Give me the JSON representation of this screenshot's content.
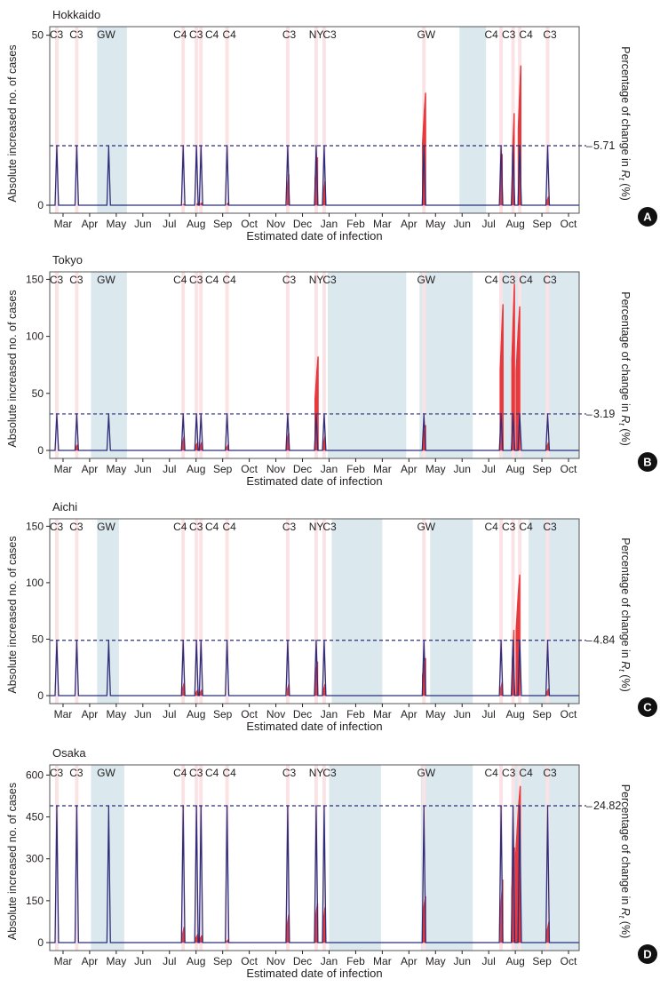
{
  "figure": {
    "xlabel": "Estimated date of infection",
    "ylabel": "Absolute increased no. of cases",
    "y2label_prefix": "Percentage of change in ",
    "y2label_symbol": "R",
    "y2label_subscript": "t",
    "y2label_suffix": " (%)",
    "month_ticks": [
      "Mar",
      "Apr",
      "May",
      "Jun",
      "Jul",
      "Aug",
      "Sep",
      "Oct",
      "Nov",
      "Dec",
      "Jan",
      "Feb",
      "Mar",
      "Apr",
      "May",
      "Jun",
      "Jul",
      "Aug",
      "Sep",
      "Oct"
    ],
    "colors": {
      "bar": "#e8383d",
      "step": "#2b2e7a",
      "shade_blue": "#dbe8ee",
      "shade_pink": "#fbe2e4",
      "axis": "#231f20"
    }
  },
  "chart_data": [
    {
      "type": "bar",
      "panel_label": "A",
      "title": "Hokkaido",
      "xlabel": "Estimated date of infection",
      "ylabel": "Absolute increased no. of cases",
      "ylim": [
        0,
        52
      ],
      "yticks": [
        0,
        50
      ],
      "xlim_month": [
        0,
        19.9
      ],
      "y2_value": 5.71,
      "y2_label": "5.71",
      "step_level": 17.5,
      "event_labels": [
        {
          "text": "C3",
          "x": 0.25
        },
        {
          "text": "C3",
          "x": 1.0
        },
        {
          "text": "GW",
          "x": 2.12
        },
        {
          "text": "C4",
          "x": 4.9
        },
        {
          "text": "C3",
          "x": 5.5
        },
        {
          "text": "C4",
          "x": 6.1
        },
        {
          "text": "C4",
          "x": 6.75
        },
        {
          "text": "C3",
          "x": 9.0
        },
        {
          "text": "NY",
          "x": 10.02
        },
        {
          "text": "C3",
          "x": 10.52
        },
        {
          "text": "GW",
          "x": 14.15
        },
        {
          "text": "C4",
          "x": 16.6
        },
        {
          "text": "C3",
          "x": 17.25
        },
        {
          "text": "C4",
          "x": 17.9
        },
        {
          "text": "C3",
          "x": 18.8
        }
      ],
      "blue_periods": [
        [
          1.78,
          2.9
        ],
        [
          15.4,
          16.4
        ]
      ],
      "pink_periods": [
        [
          0.2,
          0.33
        ],
        [
          0.95,
          1.08
        ],
        [
          4.95,
          5.08
        ],
        [
          5.45,
          5.58
        ],
        [
          5.62,
          5.75
        ],
        [
          6.6,
          6.73
        ],
        [
          8.88,
          9.01
        ],
        [
          9.95,
          10.08
        ],
        [
          10.25,
          10.38
        ],
        [
          14.0,
          14.13
        ],
        [
          16.9,
          17.03
        ],
        [
          17.35,
          17.48
        ],
        [
          17.6,
          17.73
        ],
        [
          18.65,
          18.78
        ]
      ],
      "step_periods": [
        [
          0.2,
          0.33
        ],
        [
          0.95,
          1.08
        ],
        [
          2.15,
          2.28
        ],
        [
          4.95,
          5.08
        ],
        [
          5.45,
          5.58
        ],
        [
          5.62,
          5.75
        ],
        [
          6.6,
          6.73
        ],
        [
          8.88,
          9.01
        ],
        [
          9.95,
          10.08
        ],
        [
          10.25,
          10.38
        ],
        [
          14.0,
          14.13
        ],
        [
          16.9,
          17.03
        ],
        [
          17.35,
          17.48
        ],
        [
          17.6,
          17.73
        ],
        [
          18.65,
          18.78
        ]
      ],
      "bars": [
        {
          "start": 5.0,
          "end": 5.06,
          "peak": 0.3
        },
        {
          "start": 5.52,
          "end": 5.56,
          "peak": 0.5
        },
        {
          "start": 5.66,
          "end": 5.72,
          "peak": 0.7
        },
        {
          "start": 6.66,
          "end": 6.72,
          "peak": 0.7
        },
        {
          "start": 8.92,
          "end": 9.0,
          "peak": 9
        },
        {
          "start": 9.96,
          "end": 10.08,
          "peak": 14
        },
        {
          "start": 10.28,
          "end": 10.36,
          "peak": 7
        },
        {
          "start": 14.0,
          "end": 14.14,
          "peak": 33
        },
        {
          "start": 16.94,
          "end": 17.02,
          "peak": 15
        },
        {
          "start": 17.38,
          "end": 17.47,
          "peak": 27
        },
        {
          "start": 17.6,
          "end": 17.72,
          "peak": 41
        },
        {
          "start": 18.68,
          "end": 18.76,
          "peak": 2.5
        }
      ]
    },
    {
      "type": "bar",
      "panel_label": "B",
      "title": "Tokyo",
      "xlabel": "Estimated date of infection",
      "ylabel": "Absolute increased no. of cases",
      "ylim": [
        0,
        155
      ],
      "yticks": [
        0,
        50,
        100,
        150
      ],
      "xlim_month": [
        0,
        19.9
      ],
      "y2_value": 3.19,
      "y2_label": "3.19",
      "step_level": 32,
      "event_labels": [
        {
          "text": "C3",
          "x": 0.25
        },
        {
          "text": "C3",
          "x": 1.0
        },
        {
          "text": "GW",
          "x": 2.12
        },
        {
          "text": "C4",
          "x": 4.9
        },
        {
          "text": "C3",
          "x": 5.5
        },
        {
          "text": "C4",
          "x": 6.1
        },
        {
          "text": "C4",
          "x": 6.75
        },
        {
          "text": "C3",
          "x": 9.0
        },
        {
          "text": "NY",
          "x": 10.02
        },
        {
          "text": "C3",
          "x": 10.52
        },
        {
          "text": "GW",
          "x": 14.15
        },
        {
          "text": "C4",
          "x": 16.6
        },
        {
          "text": "C3",
          "x": 17.25
        },
        {
          "text": "C4",
          "x": 17.9
        },
        {
          "text": "C3",
          "x": 18.8
        }
      ],
      "blue_periods": [
        [
          1.55,
          2.9
        ],
        [
          10.45,
          13.4
        ],
        [
          13.9,
          15.9
        ],
        [
          16.9,
          19.9
        ]
      ],
      "pink_periods": [
        [
          0.2,
          0.33
        ],
        [
          0.95,
          1.08
        ],
        [
          4.95,
          5.08
        ],
        [
          5.45,
          5.58
        ],
        [
          5.62,
          5.75
        ],
        [
          6.6,
          6.73
        ],
        [
          8.88,
          9.01
        ],
        [
          9.95,
          10.08
        ],
        [
          10.25,
          10.38
        ],
        [
          14.0,
          14.13
        ],
        [
          16.9,
          17.03
        ],
        [
          17.35,
          17.48
        ],
        [
          17.6,
          17.73
        ],
        [
          18.65,
          18.78
        ]
      ],
      "step_periods": [
        [
          0.2,
          0.33
        ],
        [
          0.95,
          1.08
        ],
        [
          2.15,
          2.28
        ],
        [
          4.95,
          5.08
        ],
        [
          5.45,
          5.58
        ],
        [
          5.62,
          5.75
        ],
        [
          6.6,
          6.73
        ],
        [
          8.88,
          9.01
        ],
        [
          9.95,
          10.08
        ],
        [
          10.25,
          10.38
        ],
        [
          14.0,
          14.13
        ],
        [
          16.9,
          17.03
        ],
        [
          17.35,
          17.48
        ],
        [
          17.6,
          17.73
        ],
        [
          18.65,
          18.78
        ]
      ],
      "bars": [
        {
          "start": 0.96,
          "end": 1.06,
          "peak": 5
        },
        {
          "start": 4.98,
          "end": 5.06,
          "peak": 12
        },
        {
          "start": 5.46,
          "end": 5.58,
          "peak": 7
        },
        {
          "start": 5.64,
          "end": 5.72,
          "peak": 7
        },
        {
          "start": 6.64,
          "end": 6.72,
          "peak": 5
        },
        {
          "start": 8.9,
          "end": 9.0,
          "peak": 15
        },
        {
          "start": 9.96,
          "end": 10.1,
          "peak": 82
        },
        {
          "start": 10.28,
          "end": 10.36,
          "peak": 12
        },
        {
          "start": 14.02,
          "end": 14.14,
          "peak": 22
        },
        {
          "start": 16.92,
          "end": 17.05,
          "peak": 128
        },
        {
          "start": 17.36,
          "end": 17.48,
          "peak": 146
        },
        {
          "start": 17.52,
          "end": 17.68,
          "peak": 126
        },
        {
          "start": 18.68,
          "end": 18.76,
          "peak": 7
        }
      ]
    },
    {
      "type": "bar",
      "panel_label": "C",
      "title": "Aichi",
      "xlabel": "Estimated date of infection",
      "ylabel": "Absolute increased no. of cases",
      "ylim": [
        0,
        155
      ],
      "yticks": [
        0,
        50,
        100,
        150
      ],
      "xlim_month": [
        0,
        19.9
      ],
      "y2_value": 4.84,
      "y2_label": "4.84",
      "step_level": 49,
      "event_labels": [
        {
          "text": "C3",
          "x": 0.25
        },
        {
          "text": "C3",
          "x": 1.0
        },
        {
          "text": "GW",
          "x": 2.12
        },
        {
          "text": "C4",
          "x": 4.9
        },
        {
          "text": "C3",
          "x": 5.5
        },
        {
          "text": "C4",
          "x": 6.1
        },
        {
          "text": "C4",
          "x": 6.75
        },
        {
          "text": "C3",
          "x": 9.0
        },
        {
          "text": "NY",
          "x": 10.02
        },
        {
          "text": "C3",
          "x": 10.52
        },
        {
          "text": "GW",
          "x": 14.15
        },
        {
          "text": "C4",
          "x": 16.6
        },
        {
          "text": "C3",
          "x": 17.25
        },
        {
          "text": "C4",
          "x": 17.9
        },
        {
          "text": "C3",
          "x": 18.8
        }
      ],
      "blue_periods": [
        [
          1.78,
          2.6
        ],
        [
          10.6,
          12.5
        ],
        [
          14.3,
          15.9
        ],
        [
          18.0,
          19.9
        ]
      ],
      "pink_periods": [
        [
          0.2,
          0.33
        ],
        [
          0.95,
          1.08
        ],
        [
          4.95,
          5.08
        ],
        [
          5.45,
          5.58
        ],
        [
          5.62,
          5.75
        ],
        [
          6.6,
          6.73
        ],
        [
          8.88,
          9.01
        ],
        [
          9.95,
          10.08
        ],
        [
          10.25,
          10.38
        ],
        [
          14.0,
          14.13
        ],
        [
          16.9,
          17.03
        ],
        [
          17.35,
          17.48
        ],
        [
          17.6,
          17.73
        ],
        [
          18.65,
          18.78
        ]
      ],
      "step_periods": [
        [
          0.2,
          0.33
        ],
        [
          0.95,
          1.08
        ],
        [
          2.15,
          2.28
        ],
        [
          4.95,
          5.08
        ],
        [
          5.45,
          5.58
        ],
        [
          5.62,
          5.75
        ],
        [
          6.6,
          6.73
        ],
        [
          8.88,
          9.01
        ],
        [
          9.95,
          10.08
        ],
        [
          10.25,
          10.38
        ],
        [
          14.0,
          14.13
        ],
        [
          16.9,
          17.03
        ],
        [
          17.35,
          17.48
        ],
        [
          17.6,
          17.73
        ],
        [
          18.65,
          18.78
        ]
      ],
      "bars": [
        {
          "start": 4.98,
          "end": 5.06,
          "peak": 11
        },
        {
          "start": 5.48,
          "end": 5.58,
          "peak": 5
        },
        {
          "start": 5.64,
          "end": 5.72,
          "peak": 5
        },
        {
          "start": 8.92,
          "end": 9.0,
          "peak": 10
        },
        {
          "start": 9.96,
          "end": 10.08,
          "peak": 30
        },
        {
          "start": 10.28,
          "end": 10.36,
          "peak": 10
        },
        {
          "start": 14.0,
          "end": 14.14,
          "peak": 33
        },
        {
          "start": 16.94,
          "end": 17.02,
          "peak": 12
        },
        {
          "start": 17.38,
          "end": 17.46,
          "peak": 58
        },
        {
          "start": 17.52,
          "end": 17.68,
          "peak": 107
        },
        {
          "start": 18.68,
          "end": 18.76,
          "peak": 6
        }
      ]
    },
    {
      "type": "bar",
      "panel_label": "D",
      "title": "Osaka",
      "xlabel": "Estimated date of infection",
      "ylabel": "Absolute increased no. of cases",
      "ylim": [
        0,
        630
      ],
      "yticks": [
        0,
        150,
        300,
        450,
        600
      ],
      "xlim_month": [
        0,
        19.9
      ],
      "y2_value": 24.82,
      "y2_label": "24.82",
      "step_level": 490,
      "event_labels": [
        {
          "text": "C3",
          "x": 0.25
        },
        {
          "text": "C3",
          "x": 1.0
        },
        {
          "text": "GW",
          "x": 2.12
        },
        {
          "text": "C4",
          "x": 4.9
        },
        {
          "text": "C3",
          "x": 5.5
        },
        {
          "text": "C4",
          "x": 6.1
        },
        {
          "text": "C4",
          "x": 6.75
        },
        {
          "text": "C3",
          "x": 9.0
        },
        {
          "text": "NY",
          "x": 10.02
        },
        {
          "text": "C3",
          "x": 10.52
        },
        {
          "text": "GW",
          "x": 14.15
        },
        {
          "text": "C4",
          "x": 16.6
        },
        {
          "text": "C3",
          "x": 17.25
        },
        {
          "text": "C4",
          "x": 17.9
        },
        {
          "text": "C3",
          "x": 18.8
        }
      ],
      "blue_periods": [
        [
          1.55,
          2.8
        ],
        [
          10.5,
          12.45
        ],
        [
          13.95,
          15.9
        ],
        [
          17.45,
          19.9
        ]
      ],
      "pink_periods": [
        [
          0.2,
          0.33
        ],
        [
          0.95,
          1.08
        ],
        [
          4.95,
          5.08
        ],
        [
          5.45,
          5.58
        ],
        [
          5.62,
          5.75
        ],
        [
          6.6,
          6.73
        ],
        [
          8.88,
          9.01
        ],
        [
          9.95,
          10.08
        ],
        [
          10.25,
          10.38
        ],
        [
          14.0,
          14.13
        ],
        [
          16.9,
          17.03
        ],
        [
          17.35,
          17.48
        ],
        [
          17.6,
          17.73
        ],
        [
          18.65,
          18.78
        ]
      ],
      "step_periods": [
        [
          0.2,
          0.33
        ],
        [
          0.95,
          1.08
        ],
        [
          2.15,
          2.28
        ],
        [
          4.95,
          5.08
        ],
        [
          5.45,
          5.58
        ],
        [
          5.62,
          5.75
        ],
        [
          6.6,
          6.73
        ],
        [
          8.88,
          9.01
        ],
        [
          9.95,
          10.08
        ],
        [
          10.25,
          10.38
        ],
        [
          14.0,
          14.13
        ],
        [
          16.9,
          17.03
        ],
        [
          17.35,
          17.48
        ],
        [
          17.6,
          17.73
        ],
        [
          18.65,
          18.78
        ]
      ],
      "bars": [
        {
          "start": 4.98,
          "end": 5.06,
          "peak": 55
        },
        {
          "start": 5.48,
          "end": 5.58,
          "peak": 30
        },
        {
          "start": 5.64,
          "end": 5.72,
          "peak": 25
        },
        {
          "start": 6.64,
          "end": 6.72,
          "peak": 10
        },
        {
          "start": 8.9,
          "end": 9.0,
          "peak": 100
        },
        {
          "start": 9.96,
          "end": 10.08,
          "peak": 140
        },
        {
          "start": 10.26,
          "end": 10.36,
          "peak": 125
        },
        {
          "start": 14.0,
          "end": 14.14,
          "peak": 165
        },
        {
          "start": 16.94,
          "end": 17.04,
          "peak": 225
        },
        {
          "start": 17.36,
          "end": 17.48,
          "peak": 340
        },
        {
          "start": 17.5,
          "end": 17.7,
          "peak": 560
        },
        {
          "start": 18.68,
          "end": 18.78,
          "peak": 75
        }
      ]
    }
  ]
}
